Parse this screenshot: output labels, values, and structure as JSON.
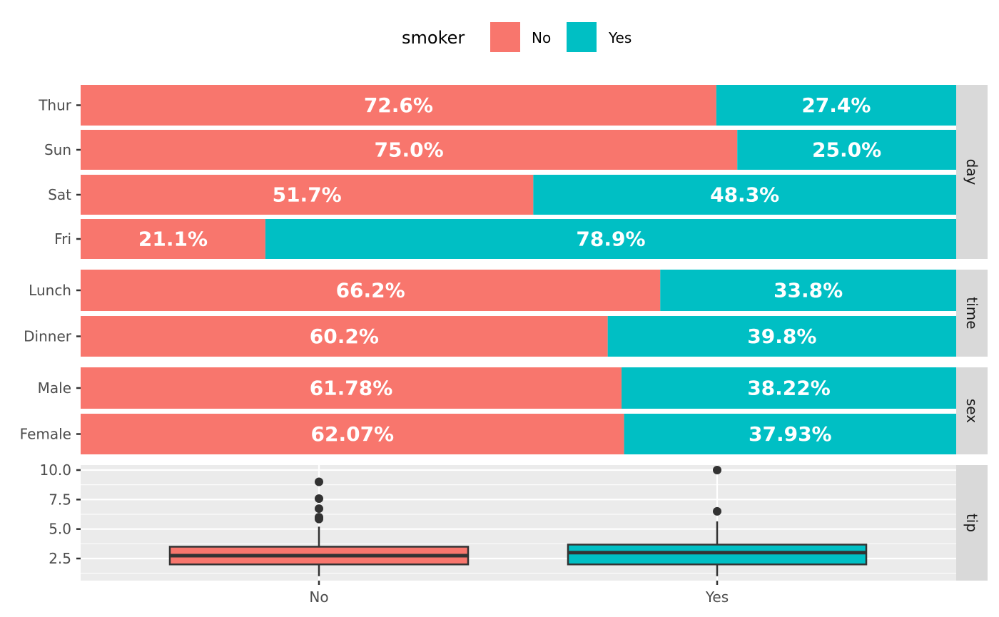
{
  "chart_data": {
    "type": "bar",
    "subtype": "stacked-percent-bar-with-boxplot",
    "legend": {
      "title": "smoker",
      "position": "top",
      "entries": [
        {
          "label": "No",
          "color": "#F8766D"
        },
        {
          "label": "Yes",
          "color": "#00BFC4"
        }
      ]
    },
    "panels": [
      {
        "strip": "day",
        "rows": [
          {
            "category": "Thur",
            "No": 72.6,
            "Yes": 27.4,
            "labels": [
              "72.6%",
              "27.4%"
            ]
          },
          {
            "category": "Sun",
            "No": 75.0,
            "Yes": 25.0,
            "labels": [
              "75.0%",
              "25.0%"
            ]
          },
          {
            "category": "Sat",
            "No": 51.7,
            "Yes": 48.3,
            "labels": [
              "51.7%",
              "48.3%"
            ]
          },
          {
            "category": "Fri",
            "No": 21.1,
            "Yes": 78.9,
            "labels": [
              "21.1%",
              "78.9%"
            ]
          }
        ]
      },
      {
        "strip": "time",
        "rows": [
          {
            "category": "Lunch",
            "No": 66.2,
            "Yes": 33.8,
            "labels": [
              "66.2%",
              "33.8%"
            ]
          },
          {
            "category": "Dinner",
            "No": 60.2,
            "Yes": 39.8,
            "labels": [
              "60.2%",
              "39.8%"
            ]
          }
        ]
      },
      {
        "strip": "sex",
        "rows": [
          {
            "category": "Male",
            "No": 61.78,
            "Yes": 38.22,
            "labels": [
              "61.78%",
              "38.22%"
            ]
          },
          {
            "category": "Female",
            "No": 62.07,
            "Yes": 37.93,
            "labels": [
              "62.07%",
              "37.93%"
            ]
          }
        ]
      }
    ],
    "boxplot": {
      "strip": "tip",
      "type": "box",
      "categories": [
        "No",
        "Yes"
      ],
      "ylim": [
        0.6,
        10.3
      ],
      "yticks": [
        2.5,
        5.0,
        7.5,
        10.0
      ],
      "ytick_labels": [
        "2.5",
        "5.0",
        "7.5",
        "10.0"
      ],
      "grid": true,
      "boxes": [
        {
          "category": "No",
          "color": "#F8766D",
          "whisker_low": 1.0,
          "q1": 2.0,
          "median": 2.74,
          "q3": 3.5,
          "whisker_high": 5.2,
          "outliers": [
            5.85,
            6.0,
            6.73,
            7.58,
            9.0
          ]
        },
        {
          "category": "Yes",
          "color": "#00BFC4",
          "whisker_low": 1.0,
          "q1": 2.0,
          "median": 3.0,
          "q3": 3.68,
          "whisker_high": 5.65,
          "outliers": [
            6.5,
            10.0
          ]
        }
      ]
    }
  }
}
